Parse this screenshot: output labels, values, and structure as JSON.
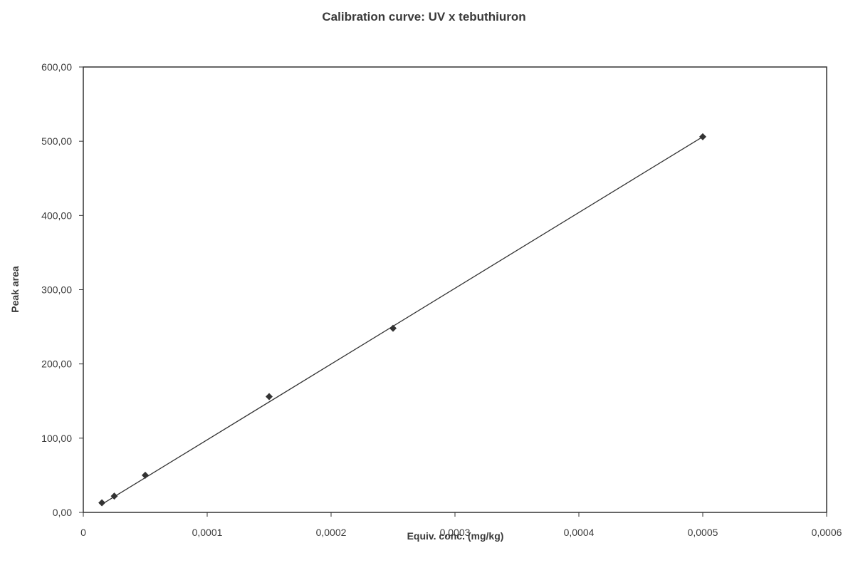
{
  "chart_data": {
    "type": "scatter",
    "title": "Calibration curve: UV x tebuthiuron",
    "xlabel": "Equiv. conc. (mg/kg)",
    "ylabel": "Peak area",
    "xlim": [
      0,
      0.0006
    ],
    "ylim": [
      0,
      600
    ],
    "x_tick_labels": [
      "0",
      "0,0001",
      "0,0002",
      "0,0003",
      "0,0004",
      "0,0005",
      "0,0006"
    ],
    "x_tick_values": [
      0,
      0.0001,
      0.0002,
      0.0003,
      0.0004,
      0.0005,
      0.0006
    ],
    "y_tick_labels": [
      "0,00",
      "100,00",
      "200,00",
      "300,00",
      "400,00",
      "500,00",
      "600,00"
    ],
    "y_tick_values": [
      0,
      100,
      200,
      300,
      400,
      500,
      600
    ],
    "grid": false,
    "series": [
      {
        "marker": "diamond",
        "color": "#333333",
        "points": [
          {
            "x": 1.5e-05,
            "y": 13
          },
          {
            "x": 2.5e-05,
            "y": 22
          },
          {
            "x": 5e-05,
            "y": 50
          },
          {
            "x": 0.00015,
            "y": 156
          },
          {
            "x": 0.00025,
            "y": 248
          },
          {
            "x": 0.0005,
            "y": 506
          }
        ]
      }
    ],
    "trendline": {
      "type": "linear",
      "x_range": [
        1.5e-05,
        0.0005
      ],
      "y_range": [
        11,
        506
      ],
      "color": "#333333"
    }
  }
}
